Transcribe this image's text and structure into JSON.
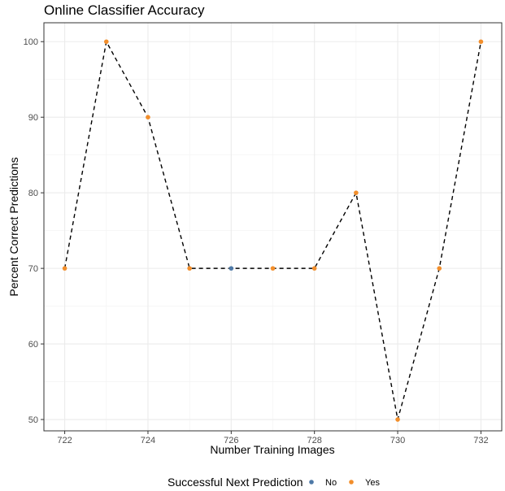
{
  "chart_data": {
    "type": "line",
    "title": "Online Classifier Accuracy",
    "xlabel": "Number Training Images",
    "ylabel": "Percent Correct Predictions",
    "xlim": [
      721.5,
      732.5
    ],
    "ylim": [
      48.5,
      102.5
    ],
    "x_ticks": [
      722,
      724,
      726,
      728,
      730,
      732
    ],
    "y_ticks": [
      50,
      60,
      70,
      80,
      90,
      100
    ],
    "grid": true,
    "line_style": "dashed",
    "points": [
      {
        "x": 722,
        "y": 70,
        "success": "Yes"
      },
      {
        "x": 723,
        "y": 100,
        "success": "Yes"
      },
      {
        "x": 724,
        "y": 90,
        "success": "Yes"
      },
      {
        "x": 725,
        "y": 70,
        "success": "Yes"
      },
      {
        "x": 726,
        "y": 70,
        "success": "No"
      },
      {
        "x": 727,
        "y": 70,
        "success": "Yes"
      },
      {
        "x": 728,
        "y": 70,
        "success": "Yes"
      },
      {
        "x": 729,
        "y": 80,
        "success": "Yes"
      },
      {
        "x": 730,
        "y": 50,
        "success": "Yes"
      },
      {
        "x": 731,
        "y": 70,
        "success": "Yes"
      },
      {
        "x": 732,
        "y": 100,
        "success": "Yes"
      }
    ],
    "legend": {
      "title": "Successful Next Prediction",
      "placement": "bottom",
      "items": [
        {
          "label": "No",
          "color": "#4e79a7"
        },
        {
          "label": "Yes",
          "color": "#f28e2b"
        }
      ]
    }
  }
}
